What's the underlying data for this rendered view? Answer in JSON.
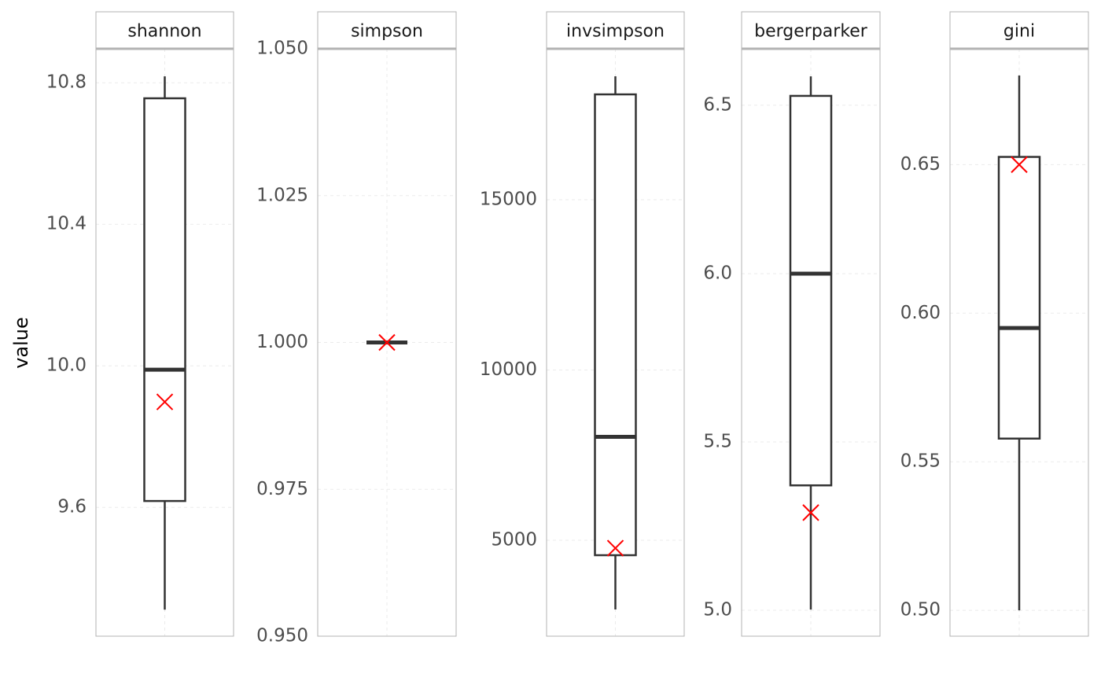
{
  "chart_data": [
    {
      "type": "box",
      "title": "shannon",
      "ylabel": "value",
      "ylim": [
        9.236,
        10.896
      ],
      "yticks": [
        {
          "value": 9.6,
          "label": "9.6"
        },
        {
          "value": 10.0,
          "label": "10.0"
        },
        {
          "value": 10.4,
          "label": "10.4"
        },
        {
          "value": 10.8,
          "label": "10.8"
        }
      ],
      "low": 9.311,
      "q1": 9.618,
      "median": 9.989,
      "q3": 10.756,
      "high": 10.818,
      "marker": 9.898,
      "box_color": "#333333",
      "marker_color": "#ff0000",
      "grid": true
    },
    {
      "type": "box",
      "title": "simpson",
      "ylim": [
        0.95,
        1.05
      ],
      "yticks": [
        {
          "value": 0.95,
          "label": "0.950"
        },
        {
          "value": 0.975,
          "label": "0.975"
        },
        {
          "value": 1.0,
          "label": "1.000"
        },
        {
          "value": 1.025,
          "label": "1.025"
        },
        {
          "value": 1.05,
          "label": "1.050"
        }
      ],
      "low": 1.0,
      "q1": 1.0,
      "median": 1.0,
      "q3": 1.0,
      "high": 1.0,
      "marker": 1.0,
      "box_color": "#333333",
      "marker_color": "#ff0000",
      "grid": true
    },
    {
      "type": "box",
      "title": "invsimpson",
      "ylim": [
        2183,
        19434
      ],
      "yticks": [
        5000,
        10000,
        15000
      ],
      "low": 2968,
      "q1": 4561,
      "median": 8037,
      "q3": 18094,
      "high": 18625,
      "marker": 4769,
      "box_color": "#333333",
      "marker_color": "#ff0000",
      "grid": true
    },
    {
      "type": "box",
      "title": "bergerparker",
      "ylim": [
        4.923,
        6.668
      ],
      "yticks": [
        {
          "value": 5.0,
          "label": "5.0"
        },
        5.5,
        {
          "value": 6.0,
          "label": "6.0"
        },
        6.5
      ],
      "low": 5.002,
      "q1": 5.371,
      "median": 6.0,
      "q3": 6.528,
      "high": 6.586,
      "marker": 5.29,
      "box_color": "#333333",
      "marker_color": "#ff0000",
      "grid": true
    },
    {
      "type": "box",
      "title": "gini",
      "ylim": [
        0.4913,
        0.689
      ],
      "yticks": [
        {
          "value": 0.5,
          "label": "0.50"
        },
        0.55,
        {
          "value": 0.6,
          "label": "0.60"
        },
        0.65
      ],
      "low": 0.5,
      "q1": 0.5578,
      "median": 0.595,
      "q3": 0.6526,
      "high": 0.68,
      "marker": 0.65,
      "box_color": "#333333",
      "marker_color": "#ff0000",
      "grid": true
    }
  ]
}
